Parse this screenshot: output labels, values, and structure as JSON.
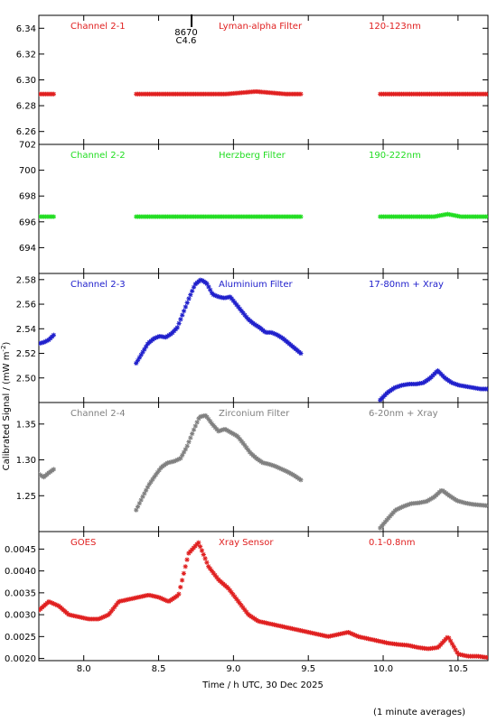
{
  "chart_data": [
    {
      "type": "scatter",
      "xlim": [
        7.7,
        10.7
      ],
      "ylim": [
        6.25,
        6.35
      ],
      "yticks": [
        "6.26",
        "6.28",
        "6.30",
        "6.32",
        "6.34"
      ],
      "labels": {
        "channel": "Channel 2-1",
        "filter": "Lyman-alpha Filter",
        "band": "120-123nm"
      },
      "color": "#e02020",
      "flare_marker": {
        "x": 8.72,
        "lines": [
          "8670",
          "C4.6"
        ]
      },
      "series": [
        {
          "segments": [
            {
              "x0": 7.7,
              "x1": 7.8,
              "y": [
                6.289,
                6.289
              ]
            },
            {
              "x0": 8.35,
              "x1": 9.45,
              "y": [
                6.289,
                6.289,
                6.289,
                6.289,
                6.289,
                6.289,
                6.289,
                6.29,
                6.291,
                6.29,
                6.289,
                6.289
              ]
            },
            {
              "x0": 9.98,
              "x1": 10.7,
              "y": [
                6.289,
                6.289
              ]
            }
          ]
        }
      ]
    },
    {
      "type": "scatter",
      "xlim": [
        7.7,
        10.7
      ],
      "ylim": [
        692,
        702
      ],
      "yticks": [
        "694",
        "696",
        "698",
        "700",
        "702"
      ],
      "labels": {
        "channel": "Channel 2-2",
        "filter": "Herzberg Filter",
        "band": "190-222nm"
      },
      "color": "#22dd22",
      "series": [
        {
          "segments": [
            {
              "x0": 7.7,
              "x1": 7.8,
              "y": [
                696.4,
                696.4
              ]
            },
            {
              "x0": 8.35,
              "x1": 9.45,
              "y": [
                696.4,
                696.4
              ]
            },
            {
              "x0": 9.98,
              "x1": 10.7,
              "y": [
                696.4,
                696.4,
                696.4,
                696.4,
                696.4,
                696.6,
                696.4,
                696.4,
                696.4
              ]
            }
          ]
        }
      ]
    },
    {
      "type": "scatter",
      "xlim": [
        7.7,
        10.7
      ],
      "ylim": [
        2.48,
        2.585
      ],
      "yticks": [
        "2.50",
        "2.52",
        "2.54",
        "2.56",
        "2.58"
      ],
      "labels": {
        "channel": "Channel 2-3",
        "filter": "Aluminium Filter",
        "band": "17-80nm + Xray"
      },
      "color": "#2020cc",
      "series": [
        {
          "segments": [
            {
              "x0": 7.7,
              "x1": 7.8,
              "y": [
                2.528,
                2.529,
                2.531,
                2.535
              ]
            },
            {
              "x0": 8.35,
              "x1": 9.45,
              "y": [
                2.512,
                2.52,
                2.528,
                2.532,
                2.534,
                2.533,
                2.536,
                2.541,
                2.553,
                2.565,
                2.576,
                2.58,
                2.577,
                2.568,
                2.566,
                2.565,
                2.566,
                2.56,
                2.554,
                2.548,
                2.544,
                2.541,
                2.537,
                2.537,
                2.535,
                2.532,
                2.528,
                2.524,
                2.52
              ]
            },
            {
              "x0": 9.98,
              "x1": 10.7,
              "y": [
                2.482,
                2.488,
                2.492,
                2.494,
                2.495,
                2.495,
                2.496,
                2.5,
                2.506,
                2.5,
                2.496,
                2.494,
                2.493,
                2.492,
                2.491,
                2.491
              ]
            }
          ]
        }
      ]
    },
    {
      "type": "scatter",
      "xlim": [
        7.7,
        10.7
      ],
      "ylim": [
        1.2,
        1.38
      ],
      "yticks": [
        "1.25",
        "1.30",
        "1.35"
      ],
      "labels": {
        "channel": "Channel 2-4",
        "filter": "Zirconium Filter",
        "band": "6-20nm + Xray"
      },
      "color": "#808080",
      "series": [
        {
          "segments": [
            {
              "x0": 7.7,
              "x1": 7.8,
              "y": [
                1.28,
                1.276,
                1.282,
                1.287
              ]
            },
            {
              "x0": 8.35,
              "x1": 9.45,
              "y": [
                1.23,
                1.248,
                1.265,
                1.278,
                1.29,
                1.296,
                1.298,
                1.302,
                1.318,
                1.34,
                1.36,
                1.362,
                1.35,
                1.34,
                1.343,
                1.338,
                1.333,
                1.322,
                1.31,
                1.302,
                1.296,
                1.294,
                1.291,
                1.287,
                1.283,
                1.278,
                1.272
              ]
            },
            {
              "x0": 9.98,
              "x1": 10.7,
              "y": [
                1.205,
                1.218,
                1.23,
                1.235,
                1.239,
                1.24,
                1.242,
                1.248,
                1.258,
                1.25,
                1.243,
                1.24,
                1.238,
                1.237,
                1.236
              ]
            }
          ]
        }
      ]
    },
    {
      "type": "scatter",
      "xlim": [
        7.7,
        10.7
      ],
      "ylim": [
        0.00195,
        0.0049
      ],
      "yticks": [
        "0.0020",
        "0.0025",
        "0.0030",
        "0.0035",
        "0.0040",
        "0.0045"
      ],
      "xticks": [
        "8.0",
        "8.5",
        "9.0",
        "9.5",
        "10.0",
        "10.5"
      ],
      "xlabel": "Time / h UTC, 30 Dec 2025",
      "labels": {
        "channel": "GOES",
        "filter": "Xray Sensor",
        "band": "0.1-0.8nm"
      },
      "color": "#e02020",
      "series": [
        {
          "segments": [
            {
              "x0": 7.7,
              "x1": 10.7,
              "y": [
                0.0031,
                0.0033,
                0.0032,
                0.003,
                0.00295,
                0.0029,
                0.0029,
                0.003,
                0.0033,
                0.00335,
                0.0034,
                0.00345,
                0.0034,
                0.0033,
                0.00345,
                0.0044,
                0.00465,
                0.0041,
                0.0038,
                0.0036,
                0.0033,
                0.003,
                0.00285,
                0.0028,
                0.00275,
                0.0027,
                0.00265,
                0.0026,
                0.00255,
                0.0025,
                0.00255,
                0.0026,
                0.0025,
                0.00245,
                0.0024,
                0.00235,
                0.00232,
                0.0023,
                0.00225,
                0.00222,
                0.00225,
                0.0025,
                0.0021,
                0.00205,
                0.00205,
                0.00202
              ]
            }
          ]
        }
      ]
    }
  ],
  "ylabel": "Calibrated Signal / (mW m",
  "ylabel_sup": "-2",
  "ylabel_close": ")",
  "footnote": "(1 minute averages)"
}
